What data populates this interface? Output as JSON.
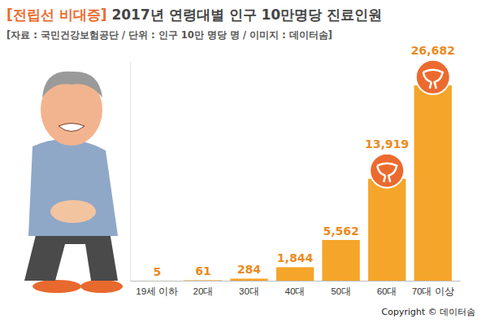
{
  "chart_data": {
    "type": "bar",
    "title": "[전립선 비대증] 2017년 연령대별 인구 10만명당 진료인원",
    "subtitle": "[자료 : 국민건강보험공단 / 단위 : 인구 10만 명당 명 / 이미지 : 데이터솜]",
    "annotations": [
      "Copyright © 데이터솜"
    ],
    "categories": [
      "19세 이하",
      "20대",
      "30대",
      "40대",
      "50대",
      "60대",
      "70대 이상"
    ],
    "values": [
      5,
      61,
      284,
      1844,
      5562,
      13919,
      26682
    ],
    "value_labels": [
      "5",
      "61",
      "284",
      "1,844",
      "5,562",
      "13,919",
      "26,682"
    ],
    "color": "#f5a52a",
    "ylim": [
      0,
      30000
    ],
    "yticks": [],
    "data_labels": true,
    "tick_labels": "x",
    "grid": false
  }
}
